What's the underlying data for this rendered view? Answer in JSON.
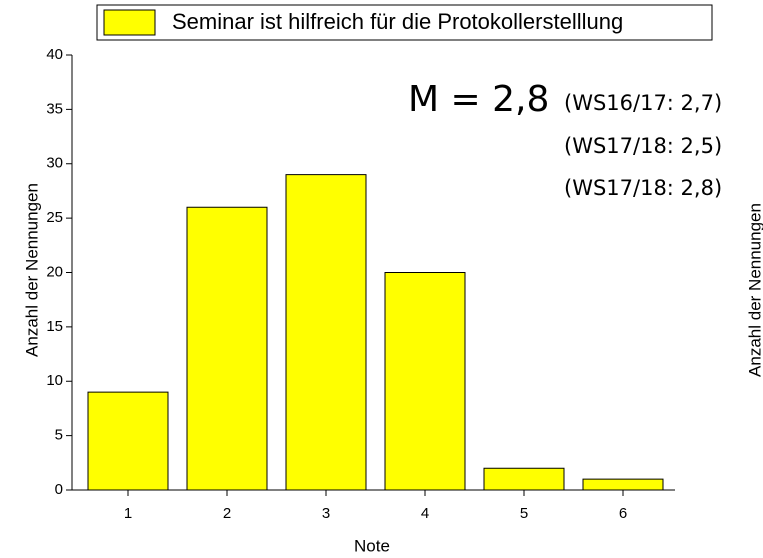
{
  "chart_data": {
    "type": "bar",
    "legend": "Seminar ist hilfreich für die Protokollerstelllung",
    "annotations": [
      "M = 2,8",
      "(WS16/17: 2,7)",
      "(WS17/18: 2,5)",
      "(WS17/18: 2,8)"
    ],
    "x_label": "Note",
    "y_label": "Anzahl der Nennungen",
    "y2_label": "Anzahl der Nennungen",
    "categories": [
      "1",
      "2",
      "3",
      "4",
      "5",
      "6"
    ],
    "values": [
      9,
      26,
      29,
      20,
      2,
      1
    ],
    "color": "#ffff00",
    "ylim": [
      0,
      40
    ],
    "yticks": [
      0,
      5,
      10,
      15,
      20,
      25,
      30,
      35,
      40
    ]
  }
}
